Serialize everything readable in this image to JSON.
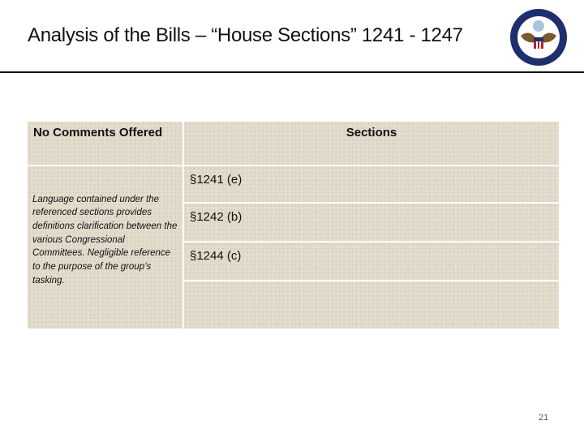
{
  "slide": {
    "title": "Analysis of the Bills – “House Sections” 1241 - 1247",
    "page_number": "21",
    "logo": {
      "name": "department-of-state-seal",
      "lettering": "Department of State · United States of America"
    }
  },
  "table": {
    "headers": [
      "No Comments Offered",
      "Sections"
    ],
    "description": "Language contained under the referenced sections provides definitions clarification between the various Congressional Committees. Negligible reference to the purpose of the group’s tasking.",
    "sections": [
      "§1241 (e)",
      "§1242 (b)",
      "§1244 (c)",
      ""
    ]
  }
}
